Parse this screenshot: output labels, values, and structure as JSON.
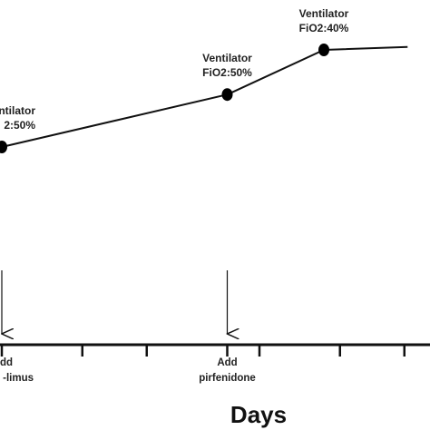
{
  "chart_data": {
    "type": "line",
    "x_axis_title": "Days",
    "points": [
      {
        "x": 0,
        "label_line1": "ntilator",
        "label_line2": "2:50%"
      },
      {
        "x": 35,
        "label_line1": "Ventilator",
        "label_line2": "FiO2:50%"
      },
      {
        "x": 50,
        "label_line1": "Ventilator",
        "label_line2": "FiO2:40%"
      },
      {
        "x": 63
      }
    ],
    "y_relative": [
      0,
      0.54,
      1.0,
      1.03
    ],
    "events": [
      {
        "x": 0,
        "label_line1": "dd",
        "label_line2": "-limus"
      },
      {
        "x": 35,
        "label_line1": "Add",
        "label_line2": "pirfenidone"
      }
    ],
    "tick_days": [
      0,
      12.5,
      22.5,
      35,
      40,
      52.5,
      62.5
    ]
  }
}
